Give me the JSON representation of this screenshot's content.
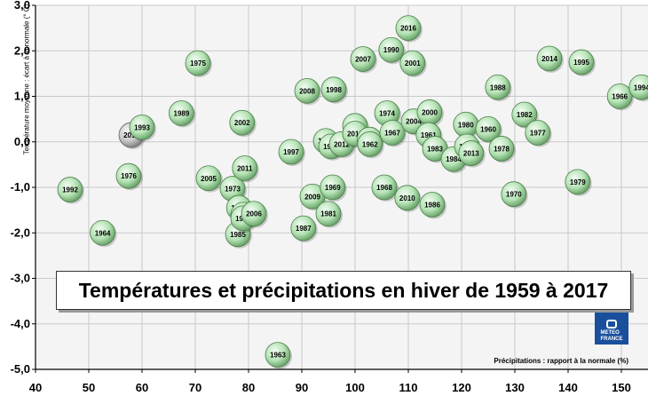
{
  "chart_data": {
    "type": "scatter",
    "title": "Températures et précipitations en hiver de 1959 à 2017",
    "xlabel": "Précipitations : rapport à la normale (%)",
    "ylabel": "Température moyenne : écart à la normale (° C)",
    "xlim": [
      40,
      155
    ],
    "ylim": [
      -5.0,
      3.0
    ],
    "xticks": [
      "40",
      "50",
      "60",
      "70",
      "80",
      "90",
      "100",
      "110",
      "120",
      "130",
      "140",
      "150"
    ],
    "yticks": [
      "3,0",
      "2,0",
      "1,0",
      "0,0",
      "-1,0",
      "-2,0",
      "-3,0",
      "-4,0",
      "-5,0"
    ],
    "grid": true,
    "highlight_year": "2017",
    "colors": {
      "bubble": "#b5e3b5",
      "bubble_highlight": "#c8c8c8",
      "background": "#f4f4f4",
      "grid": "#c9c9c9"
    },
    "points": [
      {
        "year": "1992",
        "x": 46.5,
        "y": -1.05
      },
      {
        "year": "1964",
        "x": 52.6,
        "y": -2.0
      },
      {
        "year": "1976",
        "x": 57.5,
        "y": -0.75
      },
      {
        "year": "2017",
        "x": 58.0,
        "y": 0.15
      },
      {
        "year": "1993",
        "x": 60.0,
        "y": 0.32
      },
      {
        "year": "1989",
        "x": 67.4,
        "y": 0.63
      },
      {
        "year": "1975",
        "x": 70.5,
        "y": 1.73
      },
      {
        "year": "2005",
        "x": 72.5,
        "y": -0.8
      },
      {
        "year": "1973",
        "x": 77.0,
        "y": -1.03
      },
      {
        "year": "1971",
        "x": 78.2,
        "y": -1.45
      },
      {
        "year": "1985",
        "x": 78.0,
        "y": -2.03
      },
      {
        "year": "1990",
        "x": 79.0,
        "y": -1.6
      },
      {
        "year": "1965",
        "x": 79.0,
        "y": -1.68
      },
      {
        "year": "2002",
        "x": 78.8,
        "y": 0.42
      },
      {
        "year": "2011",
        "x": 79.3,
        "y": -0.58
      },
      {
        "year": "2006",
        "x": 81.0,
        "y": -1.58
      },
      {
        "year": "1963",
        "x": 85.5,
        "y": -4.68
      },
      {
        "year": "1997",
        "x": 88.0,
        "y": -0.22
      },
      {
        "year": "1987",
        "x": 90.3,
        "y": -1.9
      },
      {
        "year": "2009",
        "x": 92.0,
        "y": -1.2
      },
      {
        "year": "2008",
        "x": 91.0,
        "y": 1.12
      },
      {
        "year": "1972",
        "x": 94.5,
        "y": 0.02
      },
      {
        "year": "1981",
        "x": 95.0,
        "y": -1.58
      },
      {
        "year": "1969",
        "x": 95.8,
        "y": -1.0
      },
      {
        "year": "1949",
        "x": 95.5,
        "y": -0.1
      },
      {
        "year": "2012",
        "x": 97.5,
        "y": -0.05
      },
      {
        "year": "1998",
        "x": 96.0,
        "y": 1.15
      },
      {
        "year": "1999",
        "x": 100.0,
        "y": 0.35
      },
      {
        "year": "2015",
        "x": 100.0,
        "y": 0.18
      },
      {
        "year": "2003",
        "x": 102.7,
        "y": 0.05
      },
      {
        "year": "1962",
        "x": 102.8,
        "y": -0.05
      },
      {
        "year": "2007",
        "x": 101.5,
        "y": 1.82
      },
      {
        "year": "1990",
        "x": 106.8,
        "y": 2.02
      },
      {
        "year": "1974",
        "x": 106.0,
        "y": 0.63
      },
      {
        "year": "1967",
        "x": 107.0,
        "y": 0.2
      },
      {
        "year": "1968",
        "x": 105.5,
        "y": -1.0
      },
      {
        "year": "2016",
        "x": 110.0,
        "y": 2.5
      },
      {
        "year": "2001",
        "x": 110.8,
        "y": 1.73
      },
      {
        "year": "2004",
        "x": 111.0,
        "y": 0.45
      },
      {
        "year": "2000",
        "x": 114.0,
        "y": 0.65
      },
      {
        "year": "1961",
        "x": 113.8,
        "y": 0.15
      },
      {
        "year": "1983",
        "x": 115.0,
        "y": -0.15
      },
      {
        "year": "2010",
        "x": 109.8,
        "y": -1.23
      },
      {
        "year": "1986",
        "x": 114.5,
        "y": -1.38
      },
      {
        "year": "1984",
        "x": 118.5,
        "y": -0.38
      },
      {
        "year": "1980",
        "x": 120.8,
        "y": 0.38
      },
      {
        "year": "1996",
        "x": 121.0,
        "y": -0.1
      },
      {
        "year": "2013",
        "x": 121.8,
        "y": -0.25
      },
      {
        "year": "1960",
        "x": 125.0,
        "y": 0.28
      },
      {
        "year": "1978",
        "x": 127.5,
        "y": -0.15
      },
      {
        "year": "1988",
        "x": 126.8,
        "y": 1.2
      },
      {
        "year": "1970",
        "x": 129.8,
        "y": -1.15
      },
      {
        "year": "1982",
        "x": 131.8,
        "y": 0.6
      },
      {
        "year": "1977",
        "x": 134.3,
        "y": 0.2
      },
      {
        "year": "2014",
        "x": 136.5,
        "y": 1.83
      },
      {
        "year": "1995",
        "x": 142.5,
        "y": 1.75
      },
      {
        "year": "1979",
        "x": 141.8,
        "y": -0.88
      },
      {
        "year": "1966",
        "x": 149.7,
        "y": 1.0
      },
      {
        "year": "1994",
        "x": 153.8,
        "y": 1.2
      }
    ]
  }
}
